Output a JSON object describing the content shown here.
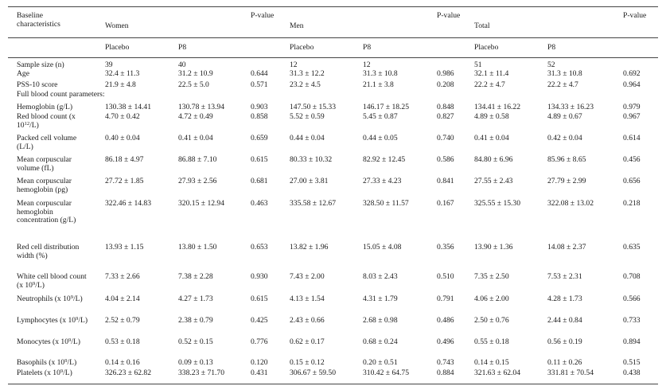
{
  "header": {
    "characteristics": "Baseline characteristics",
    "groups": {
      "women": "Women",
      "men": "Men",
      "total": "Total"
    },
    "placebo": "Placebo",
    "p8": "P8",
    "pvalue": "P-value"
  },
  "section_full_blood_count": "Full blood count parameters:",
  "rows": [
    {
      "label": "Sample size (n)",
      "v": [
        "39",
        "40",
        "",
        "12",
        "12",
        "",
        "51",
        "52",
        ""
      ]
    },
    {
      "label": "Age",
      "v": [
        "32.4 ± 11.3",
        "31.2 ± 10.9",
        "0.644",
        "31.3 ± 12.2",
        "31.3 ± 10.8",
        "0.986",
        "32.1 ± 11.4",
        "31.3 ± 10.8",
        "0.692"
      ]
    },
    {
      "label": "PSS-10 score",
      "v": [
        "21.9 ± 4.8",
        "22.5 ± 5.0",
        "0.571",
        "23.2 ± 4.5",
        "21.1 ± 3.8",
        "0.208",
        "22.2 ± 4.7",
        "22.2 ± 4.7",
        "0.964"
      ]
    },
    {
      "label": "Hemoglobin (g/L)",
      "v": [
        "130.38 ± 14.41",
        "130.78 ± 13.94",
        "0.903",
        "147.50 ± 15.33",
        "146.17 ± 18.25",
        "0.848",
        "134.41 ± 16.22",
        "134.33 ± 16.23",
        "0.979"
      ]
    },
    {
      "label_a": "Red blood count (x 10",
      "label_sup": "12",
      "label_b": "/L)",
      "v": [
        "4.70 ± 0.42",
        "4.72 ± 0.49",
        "0.858",
        "5.52 ± 0.59",
        "5.45 ± 0.87",
        "0.827",
        "4.89 ± 0.58",
        "4.89 ± 0.67",
        "0.967"
      ]
    },
    {
      "label": "Packed cell volume (L/L)",
      "v": [
        "0.40 ± 0.04",
        "0.41 ± 0.04",
        "0.659",
        "0.44 ± 0.04",
        "0.44 ± 0.05",
        "0.740",
        "0.41 ± 0.04",
        "0.42 ± 0.04",
        "0.614"
      ]
    },
    {
      "label": "Mean corpuscular volume (fL)",
      "v": [
        "86.18 ± 4.97",
        "86.88 ± 7.10",
        "0.615",
        "80.33 ± 10.32",
        "82.92 ± 12.45",
        "0.586",
        "84.80 ± 6.96",
        "85.96 ± 8.65",
        "0.456"
      ]
    },
    {
      "label": "Mean corpuscular hemoglobin (pg)",
      "v": [
        "27.72 ± 1.85",
        "27.93 ± 2.56",
        "0.681",
        "27.00 ± 3.81",
        "27.33 ± 4.23",
        "0.841",
        "27.55 ± 2.43",
        "27.79 ± 2.99",
        "0.656"
      ]
    },
    {
      "label": "Mean corpuscular hemoglobin concentration (g/L)",
      "v": [
        "322.46 ± 14.83",
        "320.15 ± 12.94",
        "0.463",
        "335.58 ± 12.67",
        "328.50 ± 11.57",
        "0.167",
        "325.55 ± 15.30",
        "322.08 ± 13.02",
        "0.218"
      ]
    },
    {
      "label": "Red cell distribution width (%)",
      "v": [
        "13.93 ± 1.15",
        "13.80 ± 1.50",
        "0.653",
        "13.82 ± 1.96",
        "15.05 ± 4.08",
        "0.356",
        "13.90 ± 1.36",
        "14.08 ± 2.37",
        "0.635"
      ]
    },
    {
      "label_a": "White cell blood count (x 10",
      "label_sup": "9",
      "label_b": "/L)",
      "v": [
        "7.33 ± 2.66",
        "7.38 ± 2.28",
        "0.930",
        "7.43 ± 2.00",
        "8.03 ± 2.43",
        "0.510",
        "7.35 ± 2.50",
        "7.53 ± 2.31",
        "0.708"
      ]
    },
    {
      "label_a": "Neutrophils (x 10",
      "label_sup": "9",
      "label_b": "/L)",
      "v": [
        "4.04 ± 2.14",
        "4.27 ± 1.73",
        "0.615",
        "4.13 ± 1.54",
        "4.31 ± 1.79",
        "0.791",
        "4.06 ± 2.00",
        "4.28 ± 1.73",
        "0.566"
      ]
    },
    {
      "label_a": "Lymphocytes (x 10",
      "label_sup": "9",
      "label_b": "/L)",
      "v": [
        "2.52 ± 0.79",
        "2.38 ± 0.79",
        "0.425",
        "2.43 ± 0.66",
        "2.68 ± 0.98",
        "0.486",
        "2.50 ± 0.76",
        "2.44 ± 0.84",
        "0.733"
      ]
    },
    {
      "label_a": "Monocytes (x 10",
      "label_sup": "9",
      "label_b": "/L)",
      "v": [
        "0.53 ± 0.18",
        "0.52 ± 0.15",
        "0.776",
        "0.62 ± 0.17",
        "0.68 ± 0.24",
        "0.496",
        "0.55 ± 0.18",
        "0.56 ± 0.19",
        "0.894"
      ]
    },
    {
      "label_a": "Basophils (x 10",
      "label_sup": "9",
      "label_b": "/L)",
      "v": [
        "0.14 ± 0.16",
        "0.09 ± 0.13",
        "0.120",
        "0.15 ± 0.12",
        "0.20 ± 0.51",
        "0.743",
        "0.14 ± 0.15",
        "0.11 ± 0.26",
        "0.515"
      ]
    },
    {
      "label_a": "Platelets (x 10",
      "label_sup": "9",
      "label_b": "/L)",
      "v": [
        "326.23 ± 62.82",
        "338.23 ± 71.70",
        "0.431",
        "306.67 ± 59.50",
        "310.42 ± 64.75",
        "0.884",
        "321.63 ± 62.04",
        "331.81 ± 70.54",
        "0.438"
      ]
    }
  ]
}
